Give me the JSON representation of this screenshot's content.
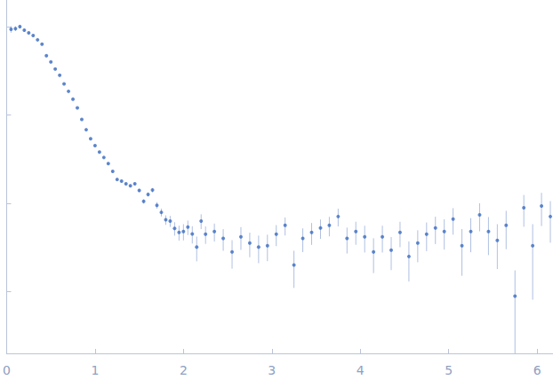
{
  "chart_data": {
    "type": "scatter",
    "log": "y",
    "grid": false,
    "tick_labels": "x",
    "color": "#3b6bc0",
    "marker": "circle",
    "xlim": [
      0,
      6.18
    ],
    "xticks": [
      0,
      1,
      2,
      3,
      4,
      5,
      6
    ],
    "ylim": [
      0.0002,
      2
    ],
    "yticks": [
      0.001,
      0.01,
      0.1,
      1
    ],
    "x": [
      0.05,
      0.1,
      0.15,
      0.2,
      0.25,
      0.3,
      0.35,
      0.4,
      0.45,
      0.5,
      0.55,
      0.6,
      0.65,
      0.7,
      0.75,
      0.8,
      0.85,
      0.9,
      0.95,
      1.0,
      1.05,
      1.1,
      1.15,
      1.2,
      1.25,
      1.3,
      1.35,
      1.4,
      1.45,
      1.5,
      1.55,
      1.6,
      1.65,
      1.7,
      1.75,
      1.8,
      1.85,
      1.9,
      1.95,
      2.0,
      2.05,
      2.1,
      2.15,
      2.2,
      2.25,
      2.35,
      2.45,
      2.55,
      2.65,
      2.75,
      2.85,
      2.95,
      3.05,
      3.15,
      3.25,
      3.35,
      3.45,
      3.55,
      3.65,
      3.75,
      3.85,
      3.95,
      4.05,
      4.15,
      4.25,
      4.35,
      4.45,
      4.55,
      4.65,
      4.75,
      4.85,
      4.95,
      5.05,
      5.15,
      5.25,
      5.35,
      5.45,
      5.55,
      5.65,
      5.75,
      5.85,
      5.95,
      6.05,
      6.15
    ],
    "values": [
      0.933,
      0.95,
      1.0,
      0.912,
      0.85,
      0.794,
      0.708,
      0.631,
      0.468,
      0.398,
      0.331,
      0.282,
      0.224,
      0.185,
      0.151,
      0.12,
      0.0891,
      0.068,
      0.0537,
      0.045,
      0.038,
      0.033,
      0.0282,
      0.023,
      0.0186,
      0.0178,
      0.0166,
      0.0158,
      0.0166,
      0.014,
      0.0105,
      0.0126,
      0.0141,
      0.0095,
      0.0079,
      0.0065,
      0.0063,
      0.0052,
      0.00468,
      0.0048,
      0.00537,
      0.0045,
      0.0032,
      0.0063,
      0.00447,
      0.00479,
      0.004,
      0.00282,
      0.00417,
      0.00355,
      0.0032,
      0.00331,
      0.00447,
      0.00562,
      0.002,
      0.004,
      0.00468,
      0.00525,
      0.00562,
      0.00708,
      0.004,
      0.00479,
      0.00417,
      0.00282,
      0.00417,
      0.00295,
      0.00468,
      0.0025,
      0.00355,
      0.00447,
      0.00525,
      0.00479,
      0.00661,
      0.00331,
      0.00479,
      0.00741,
      0.00479,
      0.0038,
      0.00562,
      0.000891,
      0.00891,
      0.00331,
      0.00933,
      0.00708
    ],
    "errors": [
      0.08,
      0.06,
      0.05,
      0.03,
      0.02,
      0.015,
      0.012,
      0.01,
      0.008,
      0.006,
      0.005,
      0.004,
      0.003,
      0.0025,
      0.002,
      0.0015,
      0.0012,
      0.001,
      0.0009,
      0.0008,
      0.0007,
      0.0006,
      0.0006,
      0.0005,
      0.0005,
      0.0005,
      0.0005,
      0.0005,
      0.0005,
      0.0006,
      0.0006,
      0.0007,
      0.0008,
      0.0008,
      0.0008,
      0.0008,
      0.0009,
      0.0009,
      0.0009,
      0.001,
      0.001,
      0.001,
      0.001,
      0.0012,
      0.001,
      0.0011,
      0.0011,
      0.001,
      0.0012,
      0.0011,
      0.0011,
      0.0011,
      0.0012,
      0.0013,
      0.0009,
      0.0012,
      0.0013,
      0.0013,
      0.0014,
      0.0016,
      0.0013,
      0.0014,
      0.0014,
      0.0012,
      0.0014,
      0.0012,
      0.0015,
      0.0012,
      0.0014,
      0.0016,
      0.0018,
      0.0018,
      0.0022,
      0.0018,
      0.002,
      0.0026,
      0.0022,
      0.002,
      0.0026,
      0.00085,
      0.0035,
      0.0025,
      0.0038,
      0.0035
    ]
  }
}
